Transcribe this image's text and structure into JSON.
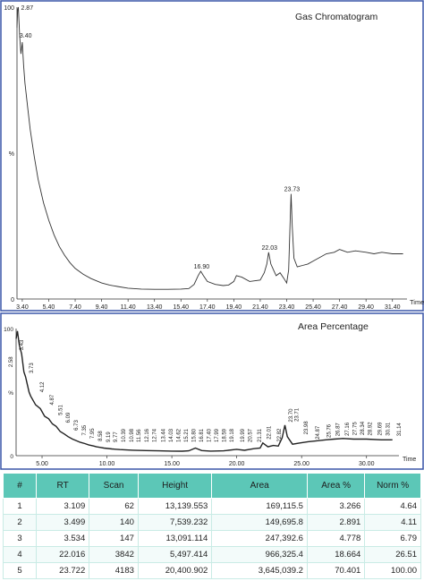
{
  "chart_data": [
    {
      "type": "line",
      "title": "Gas Chromatogram",
      "xlabel": "Time",
      "ylabel": "%",
      "xlim": [
        3.0,
        32.5
      ],
      "ylim": [
        0,
        100
      ],
      "y_ticks": [
        "100",
        "%",
        "0"
      ],
      "x_ticks": [
        "3.40",
        "5.40",
        "7.40",
        "9.40",
        "11.40",
        "13.40",
        "15.40",
        "17.40",
        "19.40",
        "21.40",
        "23.40",
        "25.40",
        "27.40",
        "29.40",
        "31.40"
      ],
      "series": [
        {
          "x": [
            3.0,
            3.05,
            3.1,
            3.2,
            3.3,
            3.4,
            3.5,
            3.6,
            3.8,
            4.0,
            4.3,
            4.6,
            5.0,
            5.4,
            5.8,
            6.2,
            6.6,
            7.0,
            7.4,
            8.0,
            8.6,
            9.4,
            10.0,
            10.6,
            11.4,
            12.4,
            13.4,
            14.4,
            15.4,
            16.0,
            16.4,
            16.7,
            16.9,
            17.1,
            17.4,
            18.0,
            18.6,
            19.0,
            19.4,
            19.6,
            20.0,
            20.6,
            21.4,
            21.7,
            21.9,
            22.03,
            22.2,
            22.4,
            22.6,
            22.9,
            23.2,
            23.4,
            23.55,
            23.65,
            23.73,
            23.82,
            23.95,
            24.2,
            24.6,
            25.0,
            25.4,
            25.8,
            26.4,
            27.0,
            27.4,
            28.0,
            28.6,
            29.4,
            30.0,
            30.6,
            31.4,
            32.2
          ],
          "y": [
            93,
            99,
            100,
            90,
            84,
            88,
            80,
            74,
            66,
            58,
            49,
            41,
            33,
            27,
            22,
            18,
            15,
            12.5,
            10.5,
            8.5,
            7,
            5.5,
            4.8,
            4.3,
            3.7,
            3.4,
            3.3,
            3.3,
            3.4,
            3.6,
            5,
            8,
            9.5,
            8,
            6,
            5,
            4.6,
            4.8,
            6,
            8,
            7.5,
            6,
            6.5,
            9,
            12,
            16,
            12,
            10,
            8,
            9,
            7,
            5.5,
            10,
            25,
            36,
            25,
            14,
            11,
            11.5,
            12,
            13,
            14,
            15.5,
            16,
            17,
            16,
            16.5,
            16,
            15.5,
            16,
            15.5,
            15.5
          ]
        }
      ],
      "annotations": [
        {
          "label": "2.87",
          "x": 3.1,
          "y": 100
        },
        {
          "label": "3.40",
          "x": 3.4,
          "y": 88
        },
        {
          "label": "16.90",
          "x": 16.9,
          "y": 9.5
        },
        {
          "label": "22.03",
          "x": 22.03,
          "y": 16
        },
        {
          "label": "23.73",
          "x": 23.73,
          "y": 36
        }
      ]
    },
    {
      "type": "line",
      "title": "Area Percentage",
      "xlabel": "Time",
      "ylabel": "%",
      "xlim": [
        3.0,
        32.5
      ],
      "ylim": [
        0,
        100
      ],
      "y_ticks": [
        "100",
        "%",
        "0"
      ],
      "x_ticks": [
        "5.00",
        "10.00",
        "15.00",
        "20.00",
        "25.00",
        "30.00"
      ],
      "series": [
        {
          "x": [
            3.0,
            3.1,
            3.25,
            3.43,
            3.6,
            3.73,
            4.0,
            4.12,
            4.5,
            4.87,
            5.2,
            5.51,
            5.8,
            6.09,
            6.4,
            6.73,
            7.0,
            7.35,
            7.6,
            7.95,
            8.3,
            8.58,
            9.0,
            9.19,
            9.5,
            9.77,
            10.39,
            11.0,
            12.0,
            13.0,
            14.0,
            15.0,
            15.8,
            16.3,
            16.81,
            17.3,
            18.0,
            19.0,
            19.99,
            20.6,
            21.31,
            21.8,
            22.01,
            22.4,
            22.82,
            23.2,
            23.5,
            23.71,
            23.9,
            24.3,
            24.87,
            25.5,
            26.0,
            26.87,
            27.5,
            28.2,
            29.0,
            30.0,
            31.14,
            32.0
          ],
          "y": [
            92,
            98,
            87,
            80,
            66,
            62,
            50,
            47,
            40,
            37,
            31,
            29,
            25,
            23,
            19,
            17,
            15,
            13,
            12,
            10.5,
            9.5,
            8.5,
            7.5,
            7,
            6.5,
            6,
            5.3,
            4.8,
            4.3,
            4,
            3.8,
            3.6,
            3.5,
            3.8,
            6,
            4,
            3.6,
            3.8,
            5,
            4.2,
            5.5,
            6,
            10,
            7,
            8,
            7.5,
            14,
            24,
            15,
            9,
            10,
            11,
            11.5,
            12.5,
            13,
            13.5,
            13,
            13,
            12.5,
            12.5
          ]
        }
      ],
      "peak_labels": [
        "2.58",
        "3.43",
        "3.73",
        "4.12",
        "4.87",
        "5.51",
        "6.09",
        "6.73",
        "7.35",
        "7.95",
        "8.58",
        "9.19",
        "9.77",
        "10.39",
        "10.98",
        "11.56",
        "12.16",
        "12.74",
        "13.44",
        "14.03",
        "14.62",
        "15.21",
        "15.80",
        "16.81",
        "17.40",
        "17.99",
        "18.59",
        "19.18",
        "19.99",
        "20.57",
        "21.31",
        "22.01",
        "22.82",
        "23.70",
        "23.71",
        "23.98",
        "24.87",
        "25.76",
        "26.87",
        "27.16",
        "27.75",
        "28.34",
        "28.92",
        "29.69",
        "30.31",
        "31.14"
      ]
    },
    {
      "type": "table",
      "columns": [
        "#",
        "RT",
        "Scan",
        "Height",
        "Area",
        "Area %",
        "Norm %"
      ],
      "rows": [
        [
          "1",
          "3.109",
          "62",
          "13,139.553",
          "169,115.5",
          "3.266",
          "4.64"
        ],
        [
          "2",
          "3.499",
          "140",
          "7,539.232",
          "149,695.8",
          "2.891",
          "4.11"
        ],
        [
          "3",
          "3.534",
          "147",
          "13,091.114",
          "247,392.6",
          "4.778",
          "6.79"
        ],
        [
          "4",
          "22.016",
          "3842",
          "5,497.414",
          "966,325.4",
          "18.664",
          "26.51"
        ],
        [
          "5",
          "23.722",
          "4183",
          "20,400.902",
          "3,645,039.2",
          "70.401",
          "100.00"
        ]
      ]
    }
  ],
  "colors": {
    "frame": "#3a56a8",
    "trace": "#333333",
    "table_header": "#5cc7b7",
    "table_border": "#c9ebe5"
  }
}
